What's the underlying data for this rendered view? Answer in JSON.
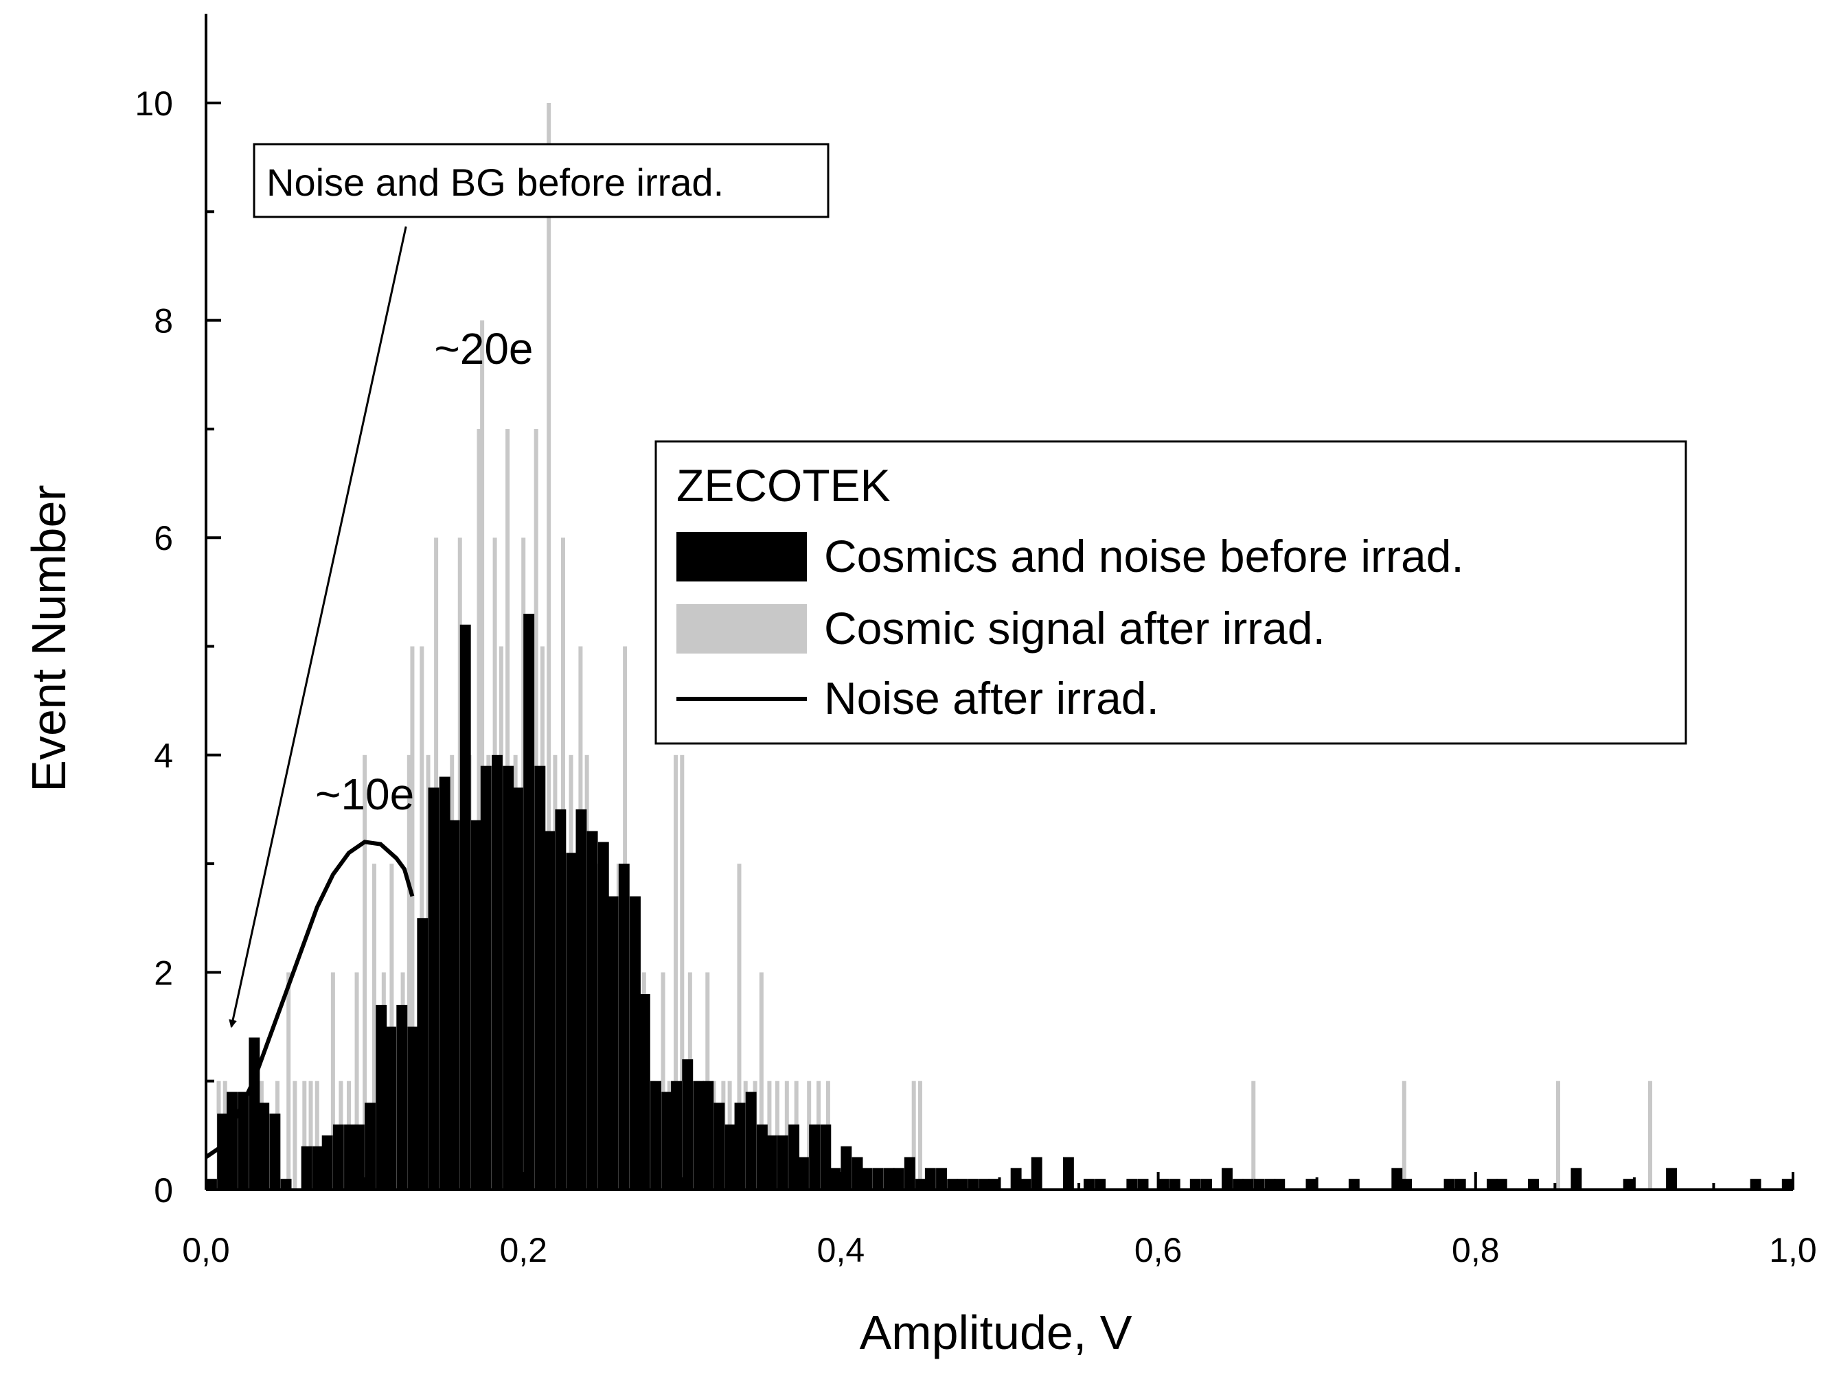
{
  "chart_data": {
    "type": "bar",
    "xlabel": "Amplitude, V",
    "ylabel": "Event Number",
    "xlim": [
      0.0,
      1.0
    ],
    "ylim": [
      0,
      11
    ],
    "x_ticks": [
      0.0,
      0.2,
      0.4,
      0.6,
      0.8,
      1.0
    ],
    "x_tick_labels": [
      "0,0",
      "0,2",
      "0,4",
      "0,6",
      "0,8",
      "1,0"
    ],
    "y_ticks": [
      0,
      2,
      4,
      6,
      8,
      10
    ],
    "y_tick_labels": [
      "0",
      "2",
      "4",
      "6",
      "8",
      "10"
    ],
    "legend": {
      "title": "ZECOTEK",
      "placement": "center-right",
      "entries": [
        {
          "label": "Cosmics and noise before irrad.",
          "color": "#000000",
          "kind": "bar"
        },
        {
          "label": "Cosmic signal after irrad.",
          "color": "#c8c8c8",
          "kind": "bar"
        },
        {
          "label": "Noise after irrad.",
          "color": "#000000",
          "kind": "line"
        }
      ]
    },
    "series": [
      {
        "name": "Cosmic signal after irrad.",
        "kind": "spikes",
        "color": "#c8c8c8",
        "points": [
          [
            0.008,
            1
          ],
          [
            0.012,
            1
          ],
          [
            0.03,
            1
          ],
          [
            0.035,
            1
          ],
          [
            0.045,
            1
          ],
          [
            0.052,
            2
          ],
          [
            0.056,
            1
          ],
          [
            0.062,
            1
          ],
          [
            0.066,
            1
          ],
          [
            0.07,
            1
          ],
          [
            0.08,
            2
          ],
          [
            0.085,
            1
          ],
          [
            0.09,
            1
          ],
          [
            0.095,
            2
          ],
          [
            0.1,
            4
          ],
          [
            0.106,
            3
          ],
          [
            0.112,
            2
          ],
          [
            0.117,
            3
          ],
          [
            0.124,
            2
          ],
          [
            0.128,
            4
          ],
          [
            0.13,
            5
          ],
          [
            0.136,
            5
          ],
          [
            0.14,
            4
          ],
          [
            0.145,
            6
          ],
          [
            0.15,
            3
          ],
          [
            0.155,
            4
          ],
          [
            0.16,
            6
          ],
          [
            0.166,
            4
          ],
          [
            0.172,
            7
          ],
          [
            0.174,
            8
          ],
          [
            0.178,
            4
          ],
          [
            0.182,
            6
          ],
          [
            0.186,
            5
          ],
          [
            0.19,
            7
          ],
          [
            0.195,
            4
          ],
          [
            0.2,
            6
          ],
          [
            0.204,
            3
          ],
          [
            0.208,
            7
          ],
          [
            0.212,
            5
          ],
          [
            0.216,
            10
          ],
          [
            0.22,
            4
          ],
          [
            0.225,
            6
          ],
          [
            0.23,
            4
          ],
          [
            0.236,
            5
          ],
          [
            0.24,
            4
          ],
          [
            0.246,
            3
          ],
          [
            0.25,
            3
          ],
          [
            0.256,
            2
          ],
          [
            0.26,
            3
          ],
          [
            0.264,
            5
          ],
          [
            0.27,
            2
          ],
          [
            0.276,
            2
          ],
          [
            0.282,
            1
          ],
          [
            0.288,
            2
          ],
          [
            0.292,
            1
          ],
          [
            0.296,
            4
          ],
          [
            0.3,
            4
          ],
          [
            0.305,
            2
          ],
          [
            0.31,
            1
          ],
          [
            0.316,
            2
          ],
          [
            0.32,
            1
          ],
          [
            0.326,
            1
          ],
          [
            0.33,
            1
          ],
          [
            0.336,
            3
          ],
          [
            0.34,
            1
          ],
          [
            0.346,
            1
          ],
          [
            0.35,
            2
          ],
          [
            0.355,
            1
          ],
          [
            0.36,
            1
          ],
          [
            0.366,
            1
          ],
          [
            0.372,
            1
          ],
          [
            0.38,
            1
          ],
          [
            0.386,
            1
          ],
          [
            0.392,
            1
          ],
          [
            0.446,
            1
          ],
          [
            0.45,
            1
          ],
          [
            0.66,
            1
          ],
          [
            0.755,
            1
          ],
          [
            0.852,
            1
          ],
          [
            0.91,
            1
          ]
        ]
      },
      {
        "name": "Cosmics and noise before irrad.",
        "kind": "histogram",
        "color": "#000000",
        "bin_width": 0.00667,
        "bin_starts": [
          0.0,
          0.007,
          0.013,
          0.02,
          0.027,
          0.033,
          0.04,
          0.047,
          0.053,
          0.06,
          0.067,
          0.073,
          0.08,
          0.087,
          0.093,
          0.1,
          0.107,
          0.113,
          0.12,
          0.127,
          0.133,
          0.14,
          0.147,
          0.153,
          0.16,
          0.167,
          0.173,
          0.18,
          0.187,
          0.193,
          0.2,
          0.207,
          0.213,
          0.22,
          0.227,
          0.233,
          0.24,
          0.247,
          0.253,
          0.26,
          0.267,
          0.273,
          0.28,
          0.287,
          0.293,
          0.3,
          0.307,
          0.313,
          0.32,
          0.327,
          0.333,
          0.34,
          0.347,
          0.353,
          0.36,
          0.367,
          0.373,
          0.38,
          0.387,
          0.393,
          0.4,
          0.407,
          0.413,
          0.42,
          0.427,
          0.433,
          0.44,
          0.447,
          0.453,
          0.46,
          0.467,
          0.473,
          0.48,
          0.487,
          0.493,
          0.5,
          0.507,
          0.513,
          0.52,
          0.527,
          0.54,
          0.547,
          0.553,
          0.56,
          0.58,
          0.587,
          0.593,
          0.6,
          0.607,
          0.613,
          0.62,
          0.627,
          0.633,
          0.64,
          0.647,
          0.653,
          0.66,
          0.667,
          0.673,
          0.693,
          0.72,
          0.747,
          0.753,
          0.78,
          0.787,
          0.807,
          0.813,
          0.833,
          0.86,
          0.893,
          0.92,
          0.973,
          0.993
        ],
        "values": [
          0.1,
          0.7,
          0.9,
          0.9,
          1.4,
          0.8,
          0.7,
          0.1,
          0.0,
          0.4,
          0.4,
          0.5,
          0.6,
          0.6,
          0.6,
          0.8,
          1.7,
          1.5,
          1.7,
          1.5,
          2.5,
          3.7,
          3.8,
          3.4,
          5.2,
          3.4,
          3.9,
          4.0,
          3.9,
          3.7,
          5.3,
          3.9,
          3.3,
          3.5,
          3.1,
          3.5,
          3.3,
          3.2,
          2.7,
          3.0,
          2.7,
          1.8,
          1.0,
          0.9,
          1.0,
          1.2,
          1.0,
          1.0,
          0.8,
          0.6,
          0.8,
          0.9,
          0.6,
          0.5,
          0.5,
          0.6,
          0.3,
          0.6,
          0.6,
          0.2,
          0.4,
          0.3,
          0.2,
          0.2,
          0.2,
          0.2,
          0.3,
          0.1,
          0.2,
          0.2,
          0.1,
          0.1,
          0.1,
          0.1,
          0.1,
          0.0,
          0.2,
          0.1,
          0.3,
          0.0,
          0.3,
          0.0,
          0.1,
          0.1,
          0.1,
          0.1,
          0.0,
          0.1,
          0.1,
          0.0,
          0.1,
          0.1,
          0.0,
          0.2,
          0.1,
          0.1,
          0.1,
          0.1,
          0.1,
          0.1,
          0.1,
          0.2,
          0.1,
          0.1,
          0.1,
          0.1,
          0.1,
          0.1,
          0.2,
          0.1,
          0.2,
          0.1,
          0.1
        ]
      },
      {
        "name": "Noise after irrad.",
        "kind": "line",
        "color": "#000000",
        "points": [
          [
            0.0,
            0.3
          ],
          [
            0.01,
            0.4
          ],
          [
            0.02,
            0.7
          ],
          [
            0.03,
            1.0
          ],
          [
            0.04,
            1.4
          ],
          [
            0.05,
            1.8
          ],
          [
            0.06,
            2.2
          ],
          [
            0.07,
            2.6
          ],
          [
            0.08,
            2.9
          ],
          [
            0.09,
            3.1
          ],
          [
            0.1,
            3.2
          ],
          [
            0.11,
            3.18
          ],
          [
            0.12,
            3.05
          ],
          [
            0.125,
            2.95
          ],
          [
            0.13,
            2.7
          ]
        ]
      }
    ],
    "annotations": [
      {
        "text": "~20e",
        "x": 0.175,
        "y": 7.6
      },
      {
        "text": "~10e",
        "x": 0.1,
        "y": 3.5
      }
    ],
    "callout": {
      "text": "Noise and BG before irrad.",
      "arrow_from": [
        0.126,
        9.0
      ],
      "arrow_to": [
        0.016,
        1.5
      ]
    }
  }
}
